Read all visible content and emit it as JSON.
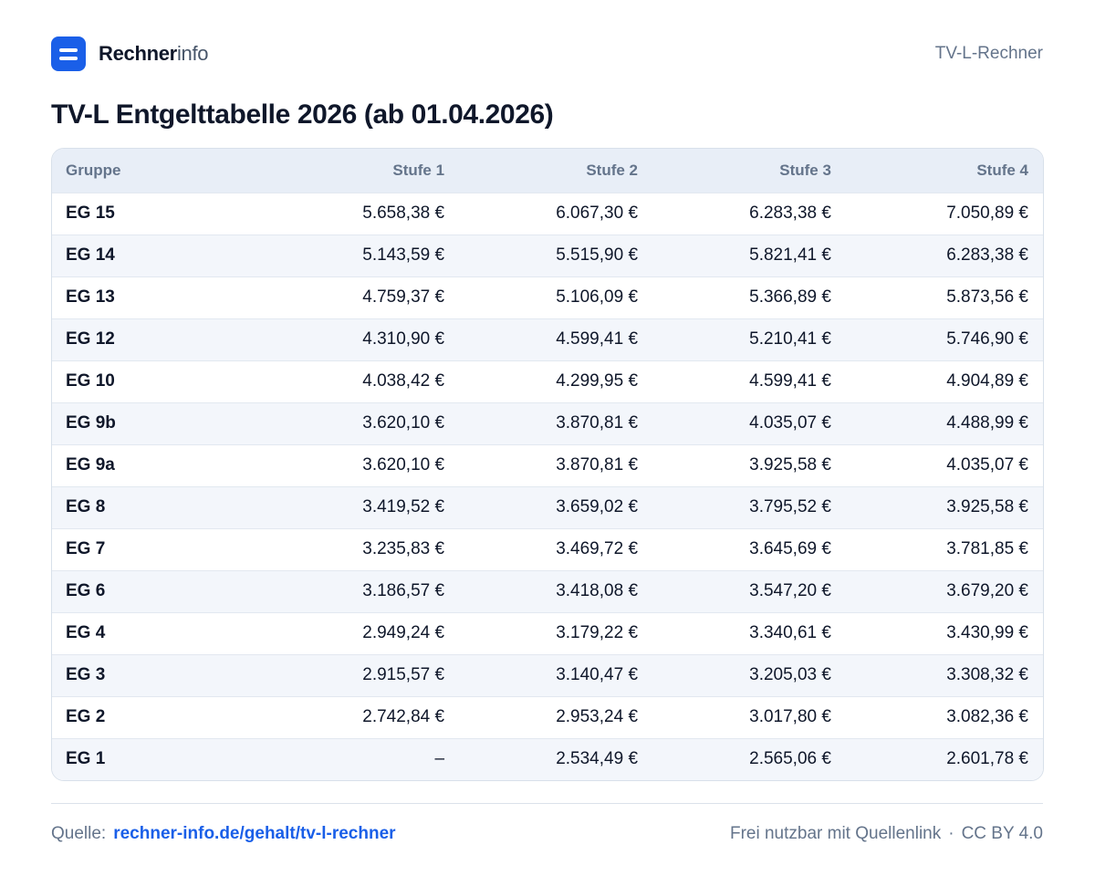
{
  "header": {
    "brand_strong": "Rechner",
    "brand_light": "info",
    "right_label": "TV-L-Rechner"
  },
  "page_title": "TV-L Entgelttabelle 2026 (ab 01.04.2026)",
  "table": {
    "columns": [
      "Gruppe",
      "Stufe 1",
      "Stufe 2",
      "Stufe 3",
      "Stufe 4"
    ],
    "rows": [
      [
        "EG 15",
        "5.658,38 €",
        "6.067,30 €",
        "6.283,38 €",
        "7.050,89 €"
      ],
      [
        "EG 14",
        "5.143,59 €",
        "5.515,90 €",
        "5.821,41 €",
        "6.283,38 €"
      ],
      [
        "EG 13",
        "4.759,37 €",
        "5.106,09 €",
        "5.366,89 €",
        "5.873,56 €"
      ],
      [
        "EG 12",
        "4.310,90 €",
        "4.599,41 €",
        "5.210,41 €",
        "5.746,90 €"
      ],
      [
        "EG 10",
        "4.038,42 €",
        "4.299,95 €",
        "4.599,41 €",
        "4.904,89 €"
      ],
      [
        "EG 9b",
        "3.620,10 €",
        "3.870,81 €",
        "4.035,07 €",
        "4.488,99 €"
      ],
      [
        "EG 9a",
        "3.620,10 €",
        "3.870,81 €",
        "3.925,58 €",
        "4.035,07 €"
      ],
      [
        "EG 8",
        "3.419,52 €",
        "3.659,02 €",
        "3.795,52 €",
        "3.925,58 €"
      ],
      [
        "EG 7",
        "3.235,83 €",
        "3.469,72 €",
        "3.645,69 €",
        "3.781,85 €"
      ],
      [
        "EG 6",
        "3.186,57 €",
        "3.418,08 €",
        "3.547,20 €",
        "3.679,20 €"
      ],
      [
        "EG 4",
        "2.949,24 €",
        "3.179,22 €",
        "3.340,61 €",
        "3.430,99 €"
      ],
      [
        "EG 3",
        "2.915,57 €",
        "3.140,47 €",
        "3.205,03 €",
        "3.308,32 €"
      ],
      [
        "EG 2",
        "2.742,84 €",
        "2.953,24 €",
        "3.017,80 €",
        "3.082,36 €"
      ],
      [
        "EG 1",
        "–",
        "2.534,49 €",
        "2.565,06 €",
        "2.601,78 €"
      ]
    ]
  },
  "footer": {
    "source_label": "Quelle:",
    "source_link": "rechner-info.de/gehalt/tv-l-rechner",
    "license_text": "Frei nutzbar mit Quellenlink",
    "separator": "·",
    "license": "CC BY 4.0"
  },
  "colors": {
    "accent": "#1a5fe8",
    "header_bg": "#e8eef7",
    "row_alt_bg": "#f3f6fb",
    "muted_text": "#64748b"
  },
  "icons": {
    "logo": "rechnerinfo-logo-icon"
  }
}
